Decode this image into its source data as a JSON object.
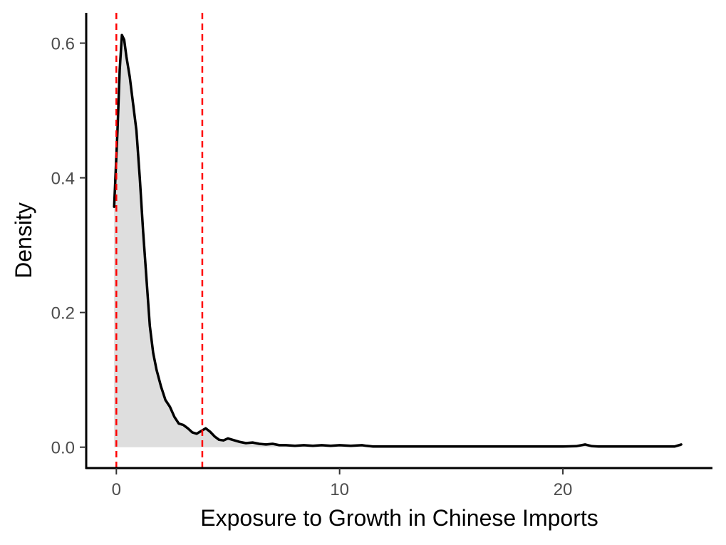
{
  "chart_data": {
    "type": "area",
    "title": "",
    "xlabel": "Exposure to Growth in Chinese Imports",
    "ylabel": "Density",
    "xlim": [
      -1.35,
      26.7
    ],
    "ylim": [
      -0.031,
      0.645
    ],
    "x_ticks": [
      0,
      10,
      20
    ],
    "x_tick_labels": [
      "0",
      "10",
      "20"
    ],
    "y_ticks": [
      0,
      0.2,
      0.4,
      0.6
    ],
    "y_tick_labels": [
      "0.0",
      "0.2",
      "0.4",
      "0.6"
    ],
    "grid": false,
    "legend": "none",
    "series": [
      {
        "x": [
          -0.1,
          0.05,
          0.15,
          0.25,
          0.35,
          0.45,
          0.6,
          0.75,
          0.9,
          1.05,
          1.2,
          1.35,
          1.5,
          1.65,
          1.8,
          2.0,
          2.2,
          2.4,
          2.6,
          2.8,
          3.0,
          3.2,
          3.4,
          3.6,
          3.8,
          4.0,
          4.2,
          4.4,
          4.6,
          4.8,
          5.0,
          5.2,
          5.5,
          5.8,
          6.1,
          6.4,
          6.7,
          7.0,
          7.3,
          7.6,
          8.0,
          8.4,
          8.8,
          9.2,
          9.6,
          10.0,
          10.5,
          11.0,
          11.2,
          11.5,
          12.0,
          14.0,
          16.0,
          18.0,
          20.0,
          20.6,
          21.0,
          21.3,
          21.6,
          22.0,
          24.0,
          25.0,
          25.3
        ],
        "y": [
          0.357,
          0.47,
          0.56,
          0.612,
          0.605,
          0.58,
          0.55,
          0.51,
          0.47,
          0.4,
          0.32,
          0.25,
          0.18,
          0.14,
          0.115,
          0.09,
          0.07,
          0.06,
          0.045,
          0.035,
          0.033,
          0.028,
          0.022,
          0.02,
          0.024,
          0.028,
          0.023,
          0.016,
          0.011,
          0.01,
          0.013,
          0.011,
          0.008,
          0.006,
          0.007,
          0.005,
          0.004,
          0.005,
          0.003,
          0.003,
          0.002,
          0.003,
          0.002,
          0.003,
          0.002,
          0.003,
          0.002,
          0.003,
          0.002,
          0.001,
          0.001,
          0.001,
          0.001,
          0.001,
          0.001,
          0.0015,
          0.004,
          0.0015,
          0.001,
          0.001,
          0.001,
          0.001,
          0.004
        ]
      }
    ],
    "vlines": [
      0,
      3.85
    ],
    "colors": {
      "line": "#000000",
      "fill": "#dedede",
      "vline": "#ff0000",
      "tick_label": "#4d4d4d"
    }
  }
}
